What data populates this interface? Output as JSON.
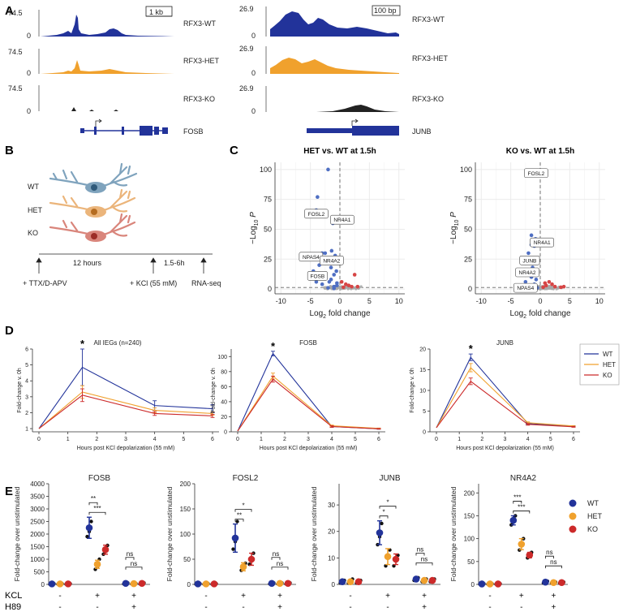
{
  "colors": {
    "wt": "#22339a",
    "het": "#f0a12d",
    "ko": "#cc2a2a",
    "volcano_blue": "#4f6fc3",
    "volcano_red": "#d64545",
    "volcano_grey": "#a8a8a8",
    "grid": "#ebebeb"
  },
  "panels": {
    "A": "A",
    "B": "B",
    "C": "C",
    "D": "D",
    "E": "E"
  },
  "panelA": {
    "left": {
      "ymax": "74.5",
      "ymin": "0",
      "scale": "1 kb",
      "tracks": [
        "RFX3-WT",
        "RFX3-HET",
        "RFX3-KO"
      ],
      "gene": "FOSB"
    },
    "right": {
      "ymax": "26.9",
      "ymin": "0",
      "scale": "100 bp",
      "tracks": [
        "RFX3-WT",
        "RFX3-HET",
        "RFX3-KO"
      ],
      "gene": "JUNB"
    }
  },
  "panelB": {
    "genotypes": [
      "WT",
      "HET",
      "KO"
    ],
    "durations": [
      "12 hours",
      "1.5-6h"
    ],
    "steps": [
      "+ TTX/D-APV",
      "+ KCl (55 mM)",
      "RNA-seq"
    ]
  },
  "panelC": {
    "ylabel_main": "−Log",
    "ylabel_sub": "10",
    "ylabel_p": "P",
    "xlabel_main": "Log",
    "xlabel_sub": "2",
    "xlabel_rest": " fold change",
    "xticks": [
      "-10",
      "-5",
      "0",
      "5",
      "10"
    ],
    "yticks": [
      "0",
      "25",
      "50",
      "75",
      "100"
    ],
    "plots": [
      {
        "title": "HET vs. WT at 1.5h",
        "labels": [
          {
            "text": "FOSL2",
            "x": -4,
            "y": 63
          },
          {
            "text": "NR4A1",
            "x": 0.4,
            "y": 58
          },
          {
            "text": "NPAS4",
            "x": -4.9,
            "y": 27
          },
          {
            "text": "NR4A2",
            "x": -1.4,
            "y": 24
          },
          {
            "text": "FOSB",
            "x": -3.8,
            "y": 11
          }
        ]
      },
      {
        "title": "KO vs. WT at 1.5h",
        "labels": [
          {
            "text": "FOSL2",
            "x": -0.7,
            "y": 97
          },
          {
            "text": "NR4A1",
            "x": 0.3,
            "y": 39
          },
          {
            "text": "JUNB",
            "x": -1.8,
            "y": 24
          },
          {
            "text": "NR4A2",
            "x": -2.2,
            "y": 14
          },
          {
            "text": "NPAS4",
            "x": -2.5,
            "y": 1
          }
        ]
      }
    ]
  },
  "panelD": {
    "xlabel": "Hours post KCl depolarization (55 mM)",
    "ylabel": "Fold-change v. 0h",
    "legend": [
      "WT",
      "HET",
      "KO"
    ],
    "star": "*"
  },
  "panelE": {
    "ylabel": "Fold-change over unstimulated",
    "row_kcl": "KCL",
    "row_h89": "H89",
    "minus": "-",
    "plus": "+",
    "legend": [
      "WT",
      "HET",
      "KO"
    ]
  },
  "chart_data": [
    {
      "type": "line",
      "panel": "D",
      "title": "All IEGs (n=240)",
      "x": [
        0,
        1.5,
        4,
        6
      ],
      "xlim": [
        0,
        6
      ],
      "ylim": [
        1,
        6
      ],
      "xticks": [
        "0",
        "1",
        "2",
        "3",
        "4",
        "5",
        "6"
      ],
      "yticks": [
        "1",
        "2",
        "3",
        "4",
        "5",
        "6"
      ],
      "series": [
        {
          "name": "WT",
          "values": [
            1,
            4.85,
            2.45,
            2.25
          ],
          "err": [
            0,
            1.15,
            0.3,
            0.25
          ]
        },
        {
          "name": "HET",
          "values": [
            1,
            3.3,
            2.15,
            1.95
          ],
          "err": [
            0,
            0.4,
            0.15,
            0.1
          ]
        },
        {
          "name": "KO",
          "values": [
            1,
            3.1,
            1.95,
            1.8
          ],
          "err": [
            0,
            0.4,
            0.12,
            0.1
          ]
        }
      ],
      "annotation": "*"
    },
    {
      "type": "line",
      "panel": "D",
      "title": "FOSB",
      "x": [
        0,
        1.5,
        4,
        6
      ],
      "xlim": [
        0,
        6
      ],
      "ylim": [
        0,
        100
      ],
      "xticks": [
        "0",
        "1",
        "2",
        "3",
        "4",
        "5",
        "6"
      ],
      "yticks": [
        "0",
        "20",
        "40",
        "60",
        "80",
        "100"
      ],
      "series": [
        {
          "name": "WT",
          "values": [
            1,
            104,
            7,
            4
          ],
          "err": [
            0,
            3,
            1,
            0.5
          ]
        },
        {
          "name": "HET",
          "values": [
            1,
            74,
            8,
            4.5
          ],
          "err": [
            0,
            4,
            1,
            0.5
          ]
        },
        {
          "name": "KO",
          "values": [
            1,
            70,
            7,
            4
          ],
          "err": [
            0,
            4,
            1,
            0.5
          ]
        }
      ],
      "annotation": "*"
    },
    {
      "type": "line",
      "panel": "D",
      "title": "JUNB",
      "x": [
        0,
        1.5,
        4,
        6
      ],
      "xlim": [
        0,
        6
      ],
      "ylim": [
        0,
        20
      ],
      "xticks": [
        "0",
        "1",
        "2",
        "3",
        "4",
        "5",
        "6"
      ],
      "yticks": [
        "0",
        "5",
        "10",
        "15",
        "20"
      ],
      "series": [
        {
          "name": "WT",
          "values": [
            1,
            18,
            2,
            1.3
          ],
          "err": [
            0,
            0.8,
            0.2,
            0.1
          ]
        },
        {
          "name": "HET",
          "values": [
            1,
            15.5,
            2.2,
            1.4
          ],
          "err": [
            0,
            1,
            0.2,
            0.1
          ]
        },
        {
          "name": "KO",
          "values": [
            1,
            12.2,
            1.8,
            1.2
          ],
          "err": [
            0,
            0.8,
            0.2,
            0.1
          ]
        }
      ],
      "annotation": "*"
    },
    {
      "type": "scatter",
      "panel": "E",
      "title": "FOSB",
      "ylim": [
        0,
        4000
      ],
      "yticks": [
        "0",
        "500",
        "1000",
        "1500",
        "2000",
        "2500",
        "3000",
        "3500",
        "4000"
      ],
      "groups": [
        {
          "kcl": "-",
          "h89": "-",
          "means": [
            20,
            20,
            20
          ],
          "err": [
            10,
            10,
            10
          ]
        },
        {
          "kcl": "+",
          "h89": "-",
          "means": [
            2250,
            800,
            1380
          ],
          "err": [
            420,
            160,
            180
          ]
        },
        {
          "kcl": "+",
          "h89": "+",
          "means": [
            40,
            30,
            40
          ],
          "err": [
            15,
            10,
            15
          ]
        }
      ],
      "points": [
        [
          [
            5,
            10,
            30
          ],
          [
            10,
            20,
            30
          ],
          [
            10,
            25,
            30
          ]
        ],
        [
          [
            1900,
            2100,
            2500
          ],
          [
            600,
            700,
            1000
          ],
          [
            1200,
            1350,
            1550
          ]
        ],
        [
          [
            20,
            40,
            60
          ],
          [
            20,
            30,
            40
          ],
          [
            20,
            40,
            60
          ]
        ]
      ],
      "comparisons": [
        {
          "label": "**",
          "pair": "WT-HET",
          "group": 1
        },
        {
          "label": "***",
          "pair": "WT-KO",
          "group": 1
        },
        {
          "label": "ns",
          "pair": "WT-HET",
          "group": 2
        },
        {
          "label": "ns",
          "pair": "WT-KO",
          "group": 2
        }
      ]
    },
    {
      "type": "scatter",
      "panel": "E",
      "title": "FOSL2",
      "ylim": [
        0,
        200
      ],
      "yticks": [
        "0",
        "50",
        "100",
        "150",
        "200"
      ],
      "groups": [
        {
          "kcl": "-",
          "h89": "-",
          "means": [
            1,
            1,
            1
          ],
          "err": [
            0.5,
            0.5,
            0.5
          ]
        },
        {
          "kcl": "+",
          "h89": "-",
          "means": [
            92,
            35,
            50
          ],
          "err": [
            28,
            8,
            12
          ]
        },
        {
          "kcl": "+",
          "h89": "+",
          "means": [
            2,
            2,
            2
          ],
          "err": [
            1,
            1,
            1
          ]
        }
      ],
      "points": [
        [
          [
            0.5,
            1,
            1.5
          ],
          [
            0.5,
            1,
            1.5
          ],
          [
            0.5,
            1,
            1.5
          ]
        ],
        [
          [
            70,
            85,
            125
          ],
          [
            28,
            35,
            42
          ],
          [
            40,
            50,
            62
          ]
        ],
        [
          [
            1,
            2,
            3
          ],
          [
            1,
            2,
            3
          ],
          [
            1,
            2,
            3
          ]
        ]
      ],
      "comparisons": [
        {
          "label": "*",
          "pair": "WT-KO",
          "group": 1
        },
        {
          "label": "**",
          "pair": "WT-HET",
          "group": 1
        },
        {
          "label": "ns",
          "pair": "WT-HET",
          "group": 2
        },
        {
          "label": "ns",
          "pair": "WT-KO",
          "group": 2
        }
      ]
    },
    {
      "type": "scatter",
      "panel": "E",
      "title": "JUNB",
      "ylim": [
        0,
        38
      ],
      "yticks": [
        "0",
        "10",
        "20",
        "30"
      ],
      "groups": [
        {
          "kcl": "-",
          "h89": "-",
          "means": [
            1,
            1,
            1
          ],
          "err": [
            0.5,
            0.5,
            0.5
          ]
        },
        {
          "kcl": "+",
          "h89": "-",
          "means": [
            19.5,
            10.5,
            9.5
          ],
          "err": [
            4.5,
            3,
            2
          ]
        },
        {
          "kcl": "+",
          "h89": "+",
          "means": [
            2,
            1.5,
            1.5
          ],
          "err": [
            0.5,
            0.5,
            0.5
          ]
        }
      ],
      "points": [
        [
          [
            0.5,
            1,
            1.5
          ],
          [
            0.5,
            1,
            2
          ],
          [
            0.5,
            1,
            1.5
          ]
        ],
        [
          [
            15,
            18,
            23
          ],
          [
            7,
            10,
            13
          ],
          [
            7,
            9,
            11
          ]
        ],
        [
          [
            1.5,
            2,
            2.5
          ],
          [
            1,
            1.5,
            2
          ],
          [
            1,
            1.5,
            2
          ]
        ]
      ],
      "comparisons": [
        {
          "label": "*",
          "pair": "WT-KO",
          "group": 1
        },
        {
          "label": "*",
          "pair": "WT-HET",
          "group": 1
        },
        {
          "label": "ns",
          "pair": "WT-HET",
          "group": 2
        },
        {
          "label": "ns",
          "pair": "WT-KO",
          "group": 2
        }
      ]
    },
    {
      "type": "scatter",
      "panel": "E",
      "title": "NR4A2",
      "ylim": [
        0,
        220
      ],
      "yticks": [
        "0",
        "50",
        "100",
        "150",
        "200"
      ],
      "groups": [
        {
          "kcl": "-",
          "h89": "-",
          "means": [
            1,
            1,
            1
          ],
          "err": [
            0.5,
            0.5,
            0.5
          ]
        },
        {
          "kcl": "+",
          "h89": "-",
          "means": [
            140,
            88,
            64
          ],
          "err": [
            10,
            12,
            6
          ]
        },
        {
          "kcl": "+",
          "h89": "+",
          "means": [
            5,
            4,
            4
          ],
          "err": [
            1,
            1,
            1
          ]
        }
      ],
      "points": [
        [
          [
            0.5,
            1,
            1.5
          ],
          [
            0.5,
            1,
            1.5
          ],
          [
            0.5,
            1,
            1.5
          ]
        ],
        [
          [
            130,
            140,
            150
          ],
          [
            75,
            88,
            100
          ],
          [
            58,
            64,
            70
          ]
        ],
        [
          [
            3,
            5,
            7
          ],
          [
            3,
            4,
            5
          ],
          [
            3,
            4,
            5
          ]
        ]
      ],
      "comparisons": [
        {
          "label": "***",
          "pair": "WT-HET",
          "group": 1
        },
        {
          "label": "***",
          "pair": "WT-KO",
          "group": 1
        },
        {
          "label": "ns",
          "pair": "WT-HET",
          "group": 2
        },
        {
          "label": "ns",
          "pair": "WT-KO",
          "group": 2
        }
      ]
    }
  ]
}
